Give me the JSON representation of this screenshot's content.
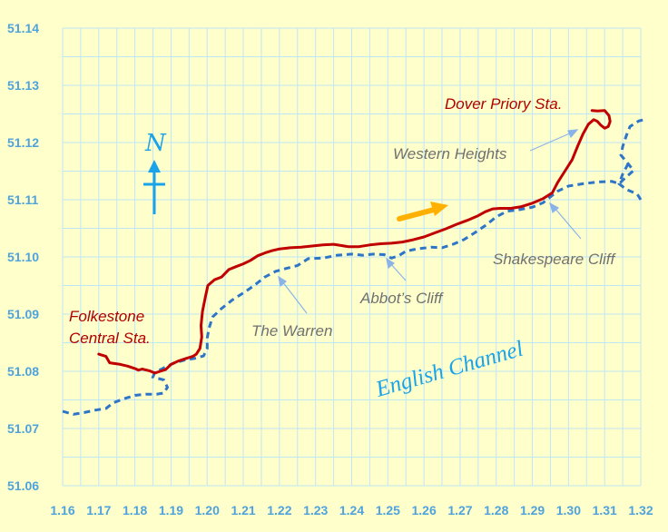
{
  "chart_data": {
    "type": "map",
    "x_ticks": [
      "1.16",
      "1.17",
      "1.18",
      "1.19",
      "1.20",
      "1.21",
      "1.22",
      "1.23",
      "1.24",
      "1.25",
      "1.26",
      "1.27",
      "1.28",
      "1.29",
      "1.30",
      "1.31",
      "1.32"
    ],
    "y_ticks": [
      "51.14",
      "51.13",
      "51.12",
      "51.11",
      "51.10",
      "51.09",
      "51.08",
      "51.07",
      "51.06"
    ],
    "xlim": [
      1.16,
      1.32
    ],
    "ylim": [
      51.06,
      51.14
    ],
    "grid": true,
    "series": [
      {
        "style": "solid",
        "color": "#C00000",
        "points": [
          [
            1.17,
            51.083
          ],
          [
            1.172,
            51.0826
          ],
          [
            1.173,
            51.0815
          ],
          [
            1.176,
            51.0812
          ],
          [
            1.178,
            51.0809
          ],
          [
            1.18,
            51.0805
          ],
          [
            1.181,
            51.0802
          ],
          [
            1.182,
            51.0804
          ],
          [
            1.184,
            51.0801
          ],
          [
            1.1855,
            51.0797
          ],
          [
            1.187,
            51.08
          ],
          [
            1.1885,
            51.0803
          ],
          [
            1.19,
            51.0812
          ],
          [
            1.192,
            51.0818
          ],
          [
            1.194,
            51.0822
          ],
          [
            1.196,
            51.0826
          ],
          [
            1.197,
            51.083
          ],
          [
            1.198,
            51.084
          ],
          [
            1.1985,
            51.086
          ],
          [
            1.1983,
            51.088
          ],
          [
            1.1987,
            51.0905
          ],
          [
            1.1995,
            51.093
          ],
          [
            1.2002,
            51.095
          ],
          [
            1.202,
            51.096
          ],
          [
            1.204,
            51.0965
          ],
          [
            1.206,
            51.0978
          ],
          [
            1.208,
            51.0983
          ],
          [
            1.21,
            51.0988
          ],
          [
            1.212,
            51.0994
          ],
          [
            1.214,
            51.1002
          ],
          [
            1.216,
            51.1007
          ],
          [
            1.218,
            51.1011
          ],
          [
            1.22,
            51.1014
          ],
          [
            1.223,
            51.1016
          ],
          [
            1.226,
            51.1017
          ],
          [
            1.229,
            51.1019
          ],
          [
            1.232,
            51.1021
          ],
          [
            1.235,
            51.1022
          ],
          [
            1.237,
            51.102
          ],
          [
            1.239,
            51.1018
          ],
          [
            1.242,
            51.1018
          ],
          [
            1.245,
            51.1021
          ],
          [
            1.248,
            51.1023
          ],
          [
            1.251,
            51.1024
          ],
          [
            1.254,
            51.1026
          ],
          [
            1.257,
            51.103
          ],
          [
            1.26,
            51.1035
          ],
          [
            1.263,
            51.1042
          ],
          [
            1.266,
            51.1049
          ],
          [
            1.269,
            51.1057
          ],
          [
            1.272,
            51.1064
          ],
          [
            1.275,
            51.1072
          ],
          [
            1.277,
            51.1079
          ],
          [
            1.279,
            51.1084
          ],
          [
            1.281,
            51.1085
          ],
          [
            1.284,
            51.1085
          ],
          [
            1.287,
            51.1088
          ],
          [
            1.29,
            51.1094
          ],
          [
            1.293,
            51.1102
          ],
          [
            1.2955,
            51.1112
          ],
          [
            1.297,
            51.113
          ],
          [
            1.299,
            51.115
          ],
          [
            1.301,
            51.117
          ],
          [
            1.3025,
            51.1193
          ],
          [
            1.304,
            51.1215
          ],
          [
            1.3055,
            51.1232
          ],
          [
            1.307,
            51.124
          ],
          [
            1.308,
            51.1237
          ],
          [
            1.309,
            51.123
          ],
          [
            1.31,
            51.1225
          ],
          [
            1.311,
            51.1228
          ],
          [
            1.3115,
            51.1237
          ],
          [
            1.3112,
            51.1247
          ],
          [
            1.31,
            51.1256
          ],
          [
            1.308,
            51.1255
          ],
          [
            1.3065,
            51.1256
          ]
        ]
      },
      {
        "style": "dashed",
        "color": "#2E75C8",
        "points": [
          [
            1.16,
            51.073
          ],
          [
            1.163,
            51.0725
          ],
          [
            1.166,
            51.0728
          ],
          [
            1.169,
            51.0732
          ],
          [
            1.172,
            51.0735
          ],
          [
            1.174,
            51.0745
          ],
          [
            1.177,
            51.0752
          ],
          [
            1.18,
            51.0758
          ],
          [
            1.183,
            51.076
          ],
          [
            1.186,
            51.076
          ],
          [
            1.188,
            51.0762
          ],
          [
            1.189,
            51.0772
          ],
          [
            1.188,
            51.0785
          ],
          [
            1.185,
            51.079
          ],
          [
            1.1855,
            51.0798
          ],
          [
            1.188,
            51.0806
          ],
          [
            1.191,
            51.0815
          ],
          [
            1.194,
            51.082
          ],
          [
            1.197,
            51.0823
          ],
          [
            1.199,
            51.0827
          ],
          [
            1.2,
            51.084
          ],
          [
            1.2,
            51.0858
          ],
          [
            1.2005,
            51.0875
          ],
          [
            1.2015,
            51.0895
          ],
          [
            1.204,
            51.091
          ],
          [
            1.207,
            51.0925
          ],
          [
            1.21,
            51.0937
          ],
          [
            1.213,
            51.095
          ],
          [
            1.216,
            51.0965
          ],
          [
            1.219,
            51.0975
          ],
          [
            1.222,
            51.098
          ],
          [
            1.225,
            51.0985
          ],
          [
            1.228,
            51.0997
          ],
          [
            1.232,
            51.0998
          ],
          [
            1.236,
            51.1003
          ],
          [
            1.24,
            51.1005
          ],
          [
            1.243,
            51.1003
          ],
          [
            1.246,
            51.1005
          ],
          [
            1.249,
            51.1004
          ],
          [
            1.251,
            51.0998
          ],
          [
            1.253,
            51.1002
          ],
          [
            1.255,
            51.101
          ],
          [
            1.258,
            51.1014
          ],
          [
            1.262,
            51.1017
          ],
          [
            1.265,
            51.1016
          ],
          [
            1.268,
            51.1022
          ],
          [
            1.271,
            51.103
          ],
          [
            1.274,
            51.1042
          ],
          [
            1.277,
            51.1055
          ],
          [
            1.28,
            51.107
          ],
          [
            1.283,
            51.108
          ],
          [
            1.286,
            51.1082
          ],
          [
            1.29,
            51.1087
          ],
          [
            1.293,
            51.1095
          ],
          [
            1.295,
            51.1105
          ],
          [
            1.297,
            51.1115
          ],
          [
            1.3,
            51.1124
          ],
          [
            1.304,
            51.1128
          ],
          [
            1.308,
            51.1131
          ],
          [
            1.312,
            51.1132
          ],
          [
            1.314,
            51.1128
          ],
          [
            1.316,
            51.114
          ],
          [
            1.318,
            51.1151
          ],
          [
            1.3165,
            51.1163
          ],
          [
            1.3145,
            51.1178
          ],
          [
            1.315,
            51.1193
          ],
          [
            1.316,
            51.1212
          ],
          [
            1.317,
            51.1228
          ],
          [
            1.3195,
            51.1238
          ],
          [
            1.321,
            51.124
          ]
        ]
      },
      {
        "style": "dashed",
        "color": "#2E75C8",
        "points": [
          [
            1.3165,
            51.1163
          ],
          [
            1.315,
            51.1145
          ],
          [
            1.314,
            51.1128
          ],
          [
            1.316,
            51.1118
          ],
          [
            1.319,
            51.111
          ],
          [
            1.32,
            51.11
          ]
        ]
      }
    ],
    "labels": {
      "folkestone_1": "Folkestone",
      "folkestone_2": "Central Sta.",
      "dover": "Dover Priory Sta.",
      "western_heights": "Western Heights",
      "shakespeare": "Shakespeare Cliff",
      "abbots": "Abbot’s Cliff",
      "warren": "The Warren",
      "channel": "English Channel",
      "north": "N"
    },
    "colors": {
      "background": "#FFFFCC",
      "grid": "#BFE6F5",
      "route": "#C00000",
      "coast": "#2E75C8",
      "arrow": "#FFB000",
      "north": "#1AA3E8",
      "leader": "#8AB4E8"
    }
  }
}
